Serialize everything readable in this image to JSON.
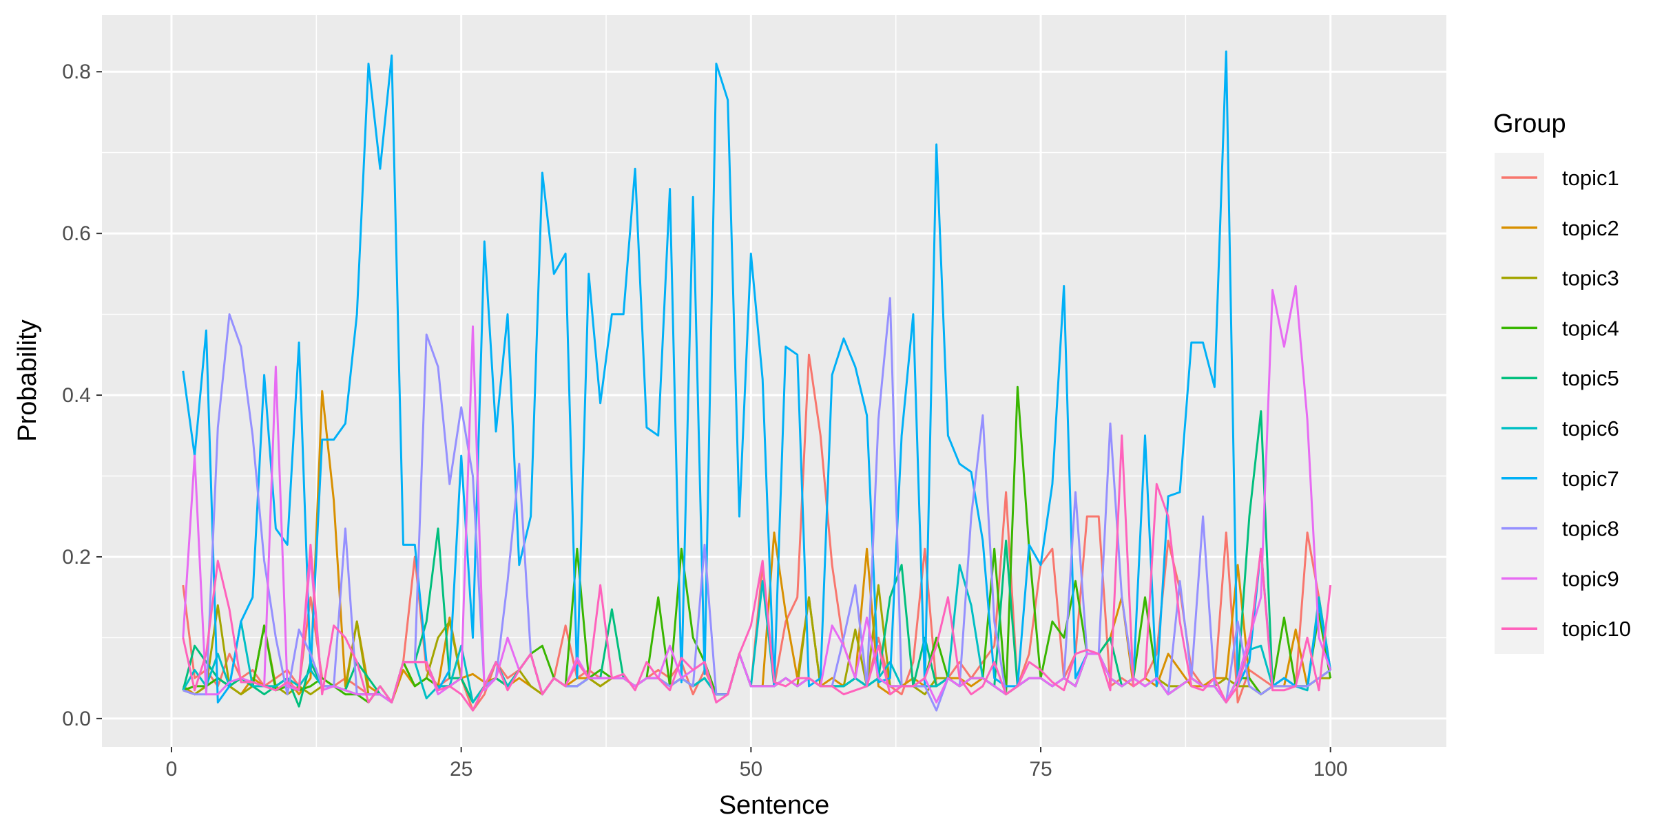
{
  "chart_data": {
    "type": "line",
    "title": "",
    "xlabel": "Sentence",
    "ylabel": "Probability",
    "xlim": [
      -6,
      110
    ],
    "ylim": [
      -0.035,
      0.87
    ],
    "x_ticks": [
      0,
      25,
      50,
      75,
      100
    ],
    "y_ticks": [
      0.0,
      0.2,
      0.4,
      0.6,
      0.8
    ],
    "y_tick_labels": [
      "0.0",
      "0.2",
      "0.4",
      "0.6",
      "0.8"
    ],
    "grid": true,
    "legend": {
      "title": "Group",
      "placement": "right"
    },
    "x": [
      1,
      2,
      3,
      4,
      5,
      6,
      7,
      8,
      9,
      10,
      11,
      12,
      13,
      14,
      15,
      16,
      17,
      18,
      19,
      20,
      21,
      22,
      23,
      24,
      25,
      26,
      27,
      28,
      29,
      30,
      31,
      32,
      33,
      34,
      35,
      36,
      37,
      38,
      39,
      40,
      41,
      42,
      43,
      44,
      45,
      46,
      47,
      48,
      49,
      50,
      51,
      52,
      53,
      54,
      55,
      56,
      57,
      58,
      59,
      60,
      61,
      62,
      63,
      64,
      65,
      66,
      67,
      68,
      69,
      70,
      71,
      72,
      73,
      74,
      75,
      76,
      77,
      78,
      79,
      80,
      81,
      82,
      83,
      84,
      85,
      86,
      87,
      88,
      89,
      90,
      91,
      92,
      93,
      94,
      95,
      96,
      97,
      98,
      99,
      100
    ],
    "series": [
      {
        "name": "topic1",
        "color": "#F8766D",
        "values": [
          0.165,
          0.05,
          0.06,
          0.04,
          0.08,
          0.05,
          0.06,
          0.04,
          0.05,
          0.06,
          0.04,
          0.15,
          0.05,
          0.04,
          0.05,
          0.04,
          0.03,
          0.03,
          0.02,
          0.07,
          0.2,
          0.06,
          0.04,
          0.05,
          0.05,
          0.01,
          0.03,
          0.07,
          0.05,
          0.06,
          0.08,
          0.03,
          0.05,
          0.115,
          0.05,
          0.06,
          0.05,
          0.05,
          0.05,
          0.04,
          0.05,
          0.06,
          0.05,
          0.07,
          0.03,
          0.06,
          0.03,
          0.03,
          0.08,
          0.04,
          0.19,
          0.04,
          0.12,
          0.15,
          0.45,
          0.35,
          0.19,
          0.09,
          0.05,
          0.04,
          0.1,
          0.04,
          0.03,
          0.07,
          0.21,
          0.04,
          0.05,
          0.07,
          0.05,
          0.07,
          0.09,
          0.28,
          0.04,
          0.08,
          0.19,
          0.21,
          0.05,
          0.08,
          0.25,
          0.25,
          0.04,
          0.05,
          0.04,
          0.05,
          0.08,
          0.22,
          0.16,
          0.06,
          0.04,
          0.04,
          0.23,
          0.02,
          0.06,
          0.05,
          0.04,
          0.05,
          0.04,
          0.23,
          0.15,
          0.06
        ]
      },
      {
        "name": "topic2",
        "color": "#D89000",
        "values": [
          0.04,
          0.03,
          0.04,
          0.05,
          0.04,
          0.03,
          0.05,
          0.04,
          0.04,
          0.05,
          0.03,
          0.05,
          0.405,
          0.27,
          0.04,
          0.12,
          0.04,
          0.03,
          0.02,
          0.06,
          0.04,
          0.05,
          0.04,
          0.125,
          0.05,
          0.055,
          0.045,
          0.05,
          0.04,
          0.05,
          0.04,
          0.03,
          0.05,
          0.04,
          0.05,
          0.05,
          0.04,
          0.05,
          0.05,
          0.04,
          0.05,
          0.05,
          0.04,
          0.05,
          0.04,
          0.05,
          0.03,
          0.03,
          0.08,
          0.04,
          0.04,
          0.23,
          0.13,
          0.05,
          0.15,
          0.04,
          0.05,
          0.04,
          0.05,
          0.21,
          0.04,
          0.03,
          0.04,
          0.05,
          0.04,
          0.04,
          0.05,
          0.05,
          0.04,
          0.05,
          0.04,
          0.03,
          0.04,
          0.05,
          0.05,
          0.04,
          0.05,
          0.04,
          0.08,
          0.08,
          0.1,
          0.15,
          0.04,
          0.05,
          0.04,
          0.08,
          0.06,
          0.04,
          0.04,
          0.05,
          0.05,
          0.19,
          0.05,
          0.03,
          0.04,
          0.04,
          0.11,
          0.04,
          0.05,
          0.06
        ]
      },
      {
        "name": "topic3",
        "color": "#A3A500",
        "values": [
          0.035,
          0.03,
          0.04,
          0.14,
          0.04,
          0.03,
          0.04,
          0.115,
          0.04,
          0.03,
          0.04,
          0.03,
          0.04,
          0.04,
          0.035,
          0.12,
          0.03,
          0.03,
          0.02,
          0.07,
          0.04,
          0.05,
          0.1,
          0.12,
          0.05,
          0.02,
          0.04,
          0.05,
          0.04,
          0.06,
          0.04,
          0.03,
          0.05,
          0.04,
          0.04,
          0.05,
          0.04,
          0.05,
          0.05,
          0.04,
          0.05,
          0.05,
          0.04,
          0.05,
          0.04,
          0.05,
          0.03,
          0.03,
          0.08,
          0.04,
          0.04,
          0.04,
          0.05,
          0.04,
          0.15,
          0.04,
          0.04,
          0.04,
          0.11,
          0.04,
          0.165,
          0.04,
          0.04,
          0.04,
          0.03,
          0.05,
          0.05,
          0.04,
          0.05,
          0.05,
          0.04,
          0.03,
          0.04,
          0.05,
          0.05,
          0.04,
          0.05,
          0.04,
          0.08,
          0.08,
          0.05,
          0.04,
          0.05,
          0.04,
          0.05,
          0.04,
          0.04,
          0.05,
          0.04,
          0.04,
          0.05,
          0.04,
          0.04,
          0.03,
          0.04,
          0.04,
          0.04,
          0.04,
          0.05,
          0.05
        ]
      },
      {
        "name": "topic4",
        "color": "#39B600",
        "values": [
          0.035,
          0.04,
          0.04,
          0.05,
          0.04,
          0.05,
          0.04,
          0.115,
          0.035,
          0.04,
          0.035,
          0.04,
          0.05,
          0.04,
          0.03,
          0.03,
          0.02,
          0.04,
          0.02,
          0.07,
          0.04,
          0.05,
          0.04,
          0.04,
          0.05,
          0.02,
          0.04,
          0.05,
          0.04,
          0.06,
          0.08,
          0.09,
          0.05,
          0.04,
          0.21,
          0.05,
          0.06,
          0.05,
          0.05,
          0.04,
          0.05,
          0.15,
          0.04,
          0.21,
          0.1,
          0.07,
          0.03,
          0.03,
          0.08,
          0.04,
          0.04,
          0.04,
          0.05,
          0.04,
          0.05,
          0.04,
          0.04,
          0.04,
          0.05,
          0.04,
          0.05,
          0.04,
          0.04,
          0.04,
          0.05,
          0.1,
          0.05,
          0.04,
          0.05,
          0.05,
          0.21,
          0.03,
          0.41,
          0.21,
          0.05,
          0.12,
          0.1,
          0.17,
          0.08,
          0.08,
          0.05,
          0.04,
          0.05,
          0.15,
          0.05,
          0.03,
          0.04,
          0.05,
          0.04,
          0.04,
          0.02,
          0.05,
          0.05,
          0.03,
          0.04,
          0.125,
          0.04,
          0.04,
          0.13,
          0.05
        ]
      },
      {
        "name": "topic5",
        "color": "#00BF7D",
        "values": [
          0.035,
          0.09,
          0.07,
          0.05,
          0.04,
          0.05,
          0.04,
          0.03,
          0.04,
          0.05,
          0.015,
          0.07,
          0.04,
          0.04,
          0.035,
          0.07,
          0.05,
          0.03,
          0.02,
          0.07,
          0.07,
          0.12,
          0.235,
          0.05,
          0.05,
          0.02,
          0.04,
          0.05,
          0.04,
          0.06,
          0.08,
          0.03,
          0.05,
          0.04,
          0.04,
          0.05,
          0.05,
          0.135,
          0.05,
          0.04,
          0.05,
          0.05,
          0.04,
          0.05,
          0.04,
          0.05,
          0.03,
          0.03,
          0.08,
          0.04,
          0.04,
          0.04,
          0.05,
          0.04,
          0.05,
          0.04,
          0.04,
          0.04,
          0.05,
          0.04,
          0.05,
          0.15,
          0.19,
          0.04,
          0.1,
          0.04,
          0.05,
          0.04,
          0.05,
          0.05,
          0.04,
          0.22,
          0.04,
          0.05,
          0.05,
          0.04,
          0.05,
          0.04,
          0.08,
          0.08,
          0.1,
          0.04,
          0.05,
          0.04,
          0.05,
          0.03,
          0.04,
          0.05,
          0.04,
          0.04,
          0.02,
          0.05,
          0.25,
          0.38,
          0.04,
          0.05,
          0.04,
          0.04,
          0.05,
          0.06
        ]
      },
      {
        "name": "topic6",
        "color": "#00BFC4",
        "values": [
          0.035,
          0.06,
          0.04,
          0.08,
          0.04,
          0.12,
          0.04,
          0.04,
          0.04,
          0.05,
          0.04,
          0.06,
          0.04,
          0.04,
          0.035,
          0.03,
          0.03,
          0.03,
          0.02,
          0.07,
          0.07,
          0.025,
          0.04,
          0.04,
          0.09,
          0.02,
          0.04,
          0.07,
          0.04,
          0.06,
          0.08,
          0.03,
          0.05,
          0.04,
          0.04,
          0.05,
          0.05,
          0.05,
          0.05,
          0.04,
          0.05,
          0.05,
          0.04,
          0.05,
          0.04,
          0.05,
          0.03,
          0.03,
          0.08,
          0.04,
          0.17,
          0.04,
          0.05,
          0.04,
          0.05,
          0.04,
          0.04,
          0.04,
          0.05,
          0.04,
          0.05,
          0.07,
          0.04,
          0.04,
          0.04,
          0.04,
          0.05,
          0.19,
          0.14,
          0.05,
          0.04,
          0.03,
          0.04,
          0.05,
          0.05,
          0.04,
          0.05,
          0.04,
          0.08,
          0.08,
          0.05,
          0.04,
          0.05,
          0.04,
          0.05,
          0.03,
          0.04,
          0.05,
          0.04,
          0.04,
          0.02,
          0.05,
          0.085,
          0.09,
          0.04,
          0.05,
          0.04,
          0.035,
          0.15,
          0.06
        ]
      },
      {
        "name": "topic7",
        "color": "#00B0F6",
        "values": [
          0.43,
          0.325,
          0.48,
          0.02,
          0.04,
          0.12,
          0.15,
          0.425,
          0.235,
          0.215,
          0.465,
          0.06,
          0.345,
          0.345,
          0.365,
          0.5,
          0.81,
          0.68,
          0.82,
          0.215,
          0.215,
          0.07,
          0.035,
          0.06,
          0.325,
          0.1,
          0.59,
          0.355,
          0.5,
          0.19,
          0.25,
          0.675,
          0.55,
          0.575,
          0.05,
          0.55,
          0.39,
          0.5,
          0.5,
          0.68,
          0.36,
          0.35,
          0.655,
          0.045,
          0.645,
          0.055,
          0.81,
          0.765,
          0.25,
          0.575,
          0.42,
          0.04,
          0.46,
          0.45,
          0.04,
          0.05,
          0.425,
          0.47,
          0.435,
          0.375,
          0.045,
          0.05,
          0.35,
          0.5,
          0.04,
          0.71,
          0.35,
          0.315,
          0.305,
          0.22,
          0.05,
          0.04,
          0.04,
          0.215,
          0.19,
          0.29,
          0.535,
          0.05,
          0.08,
          0.08,
          0.05,
          0.04,
          0.05,
          0.35,
          0.04,
          0.275,
          0.28,
          0.465,
          0.465,
          0.41,
          0.825,
          0.04,
          0.07,
          0.21,
          0.04,
          0.05,
          0.04,
          0.04,
          0.14,
          0.06
        ]
      },
      {
        "name": "topic8",
        "color": "#9590FF",
        "values": [
          0.035,
          0.03,
          0.03,
          0.36,
          0.5,
          0.46,
          0.35,
          0.195,
          0.1,
          0.03,
          0.11,
          0.08,
          0.04,
          0.04,
          0.235,
          0.03,
          0.03,
          0.03,
          0.02,
          0.07,
          0.07,
          0.475,
          0.435,
          0.29,
          0.385,
          0.3,
          0.04,
          0.05,
          0.17,
          0.315,
          0.08,
          0.03,
          0.05,
          0.04,
          0.04,
          0.05,
          0.05,
          0.05,
          0.05,
          0.04,
          0.05,
          0.05,
          0.04,
          0.05,
          0.04,
          0.215,
          0.03,
          0.03,
          0.08,
          0.04,
          0.04,
          0.04,
          0.05,
          0.04,
          0.05,
          0.04,
          0.04,
          0.1,
          0.165,
          0.04,
          0.37,
          0.52,
          0.04,
          0.04,
          0.04,
          0.01,
          0.05,
          0.04,
          0.25,
          0.375,
          0.12,
          0.03,
          0.04,
          0.05,
          0.05,
          0.04,
          0.05,
          0.28,
          0.08,
          0.08,
          0.365,
          0.15,
          0.05,
          0.04,
          0.05,
          0.03,
          0.17,
          0.05,
          0.25,
          0.04,
          0.02,
          0.12,
          0.04,
          0.03,
          0.04,
          0.04,
          0.04,
          0.04,
          0.05,
          0.06
        ]
      },
      {
        "name": "topic9",
        "color": "#E76BF3",
        "values": [
          0.1,
          0.325,
          0.03,
          0.03,
          0.045,
          0.05,
          0.045,
          0.04,
          0.435,
          0.04,
          0.035,
          0.2,
          0.035,
          0.04,
          0.035,
          0.03,
          0.03,
          0.03,
          0.02,
          0.07,
          0.07,
          0.07,
          0.03,
          0.04,
          0.05,
          0.485,
          0.035,
          0.05,
          0.1,
          0.06,
          0.08,
          0.03,
          0.05,
          0.04,
          0.075,
          0.05,
          0.05,
          0.05,
          0.05,
          0.04,
          0.05,
          0.05,
          0.09,
          0.05,
          0.06,
          0.07,
          0.02,
          0.03,
          0.08,
          0.04,
          0.04,
          0.04,
          0.05,
          0.04,
          0.05,
          0.04,
          0.115,
          0.09,
          0.05,
          0.125,
          0.05,
          0.04,
          0.04,
          0.04,
          0.05,
          0.02,
          0.05,
          0.04,
          0.05,
          0.05,
          0.04,
          0.03,
          0.04,
          0.05,
          0.05,
          0.04,
          0.05,
          0.04,
          0.08,
          0.08,
          0.05,
          0.04,
          0.05,
          0.04,
          0.05,
          0.03,
          0.04,
          0.05,
          0.04,
          0.04,
          0.02,
          0.05,
          0.1,
          0.15,
          0.53,
          0.46,
          0.535,
          0.37,
          0.1,
          0.06
        ]
      },
      {
        "name": "topic10",
        "color": "#FF62BC",
        "values": [
          0.1,
          0.035,
          0.08,
          0.195,
          0.135,
          0.045,
          0.045,
          0.04,
          0.035,
          0.045,
          0.035,
          0.215,
          0.03,
          0.115,
          0.1,
          0.07,
          0.02,
          0.04,
          0.02,
          0.07,
          0.07,
          0.07,
          0.035,
          0.04,
          0.03,
          0.01,
          0.04,
          0.07,
          0.035,
          0.06,
          0.08,
          0.03,
          0.05,
          0.04,
          0.07,
          0.05,
          0.165,
          0.05,
          0.055,
          0.035,
          0.07,
          0.05,
          0.035,
          0.075,
          0.06,
          0.07,
          0.02,
          0.03,
          0.08,
          0.115,
          0.195,
          0.045,
          0.04,
          0.05,
          0.05,
          0.04,
          0.04,
          0.03,
          0.035,
          0.04,
          0.09,
          0.03,
          0.04,
          0.04,
          0.05,
          0.09,
          0.15,
          0.05,
          0.03,
          0.04,
          0.07,
          0.03,
          0.04,
          0.07,
          0.06,
          0.045,
          0.035,
          0.08,
          0.085,
          0.08,
          0.035,
          0.35,
          0.04,
          0.05,
          0.29,
          0.25,
          0.12,
          0.04,
          0.035,
          0.05,
          0.02,
          0.04,
          0.09,
          0.21,
          0.035,
          0.035,
          0.04,
          0.1,
          0.035,
          0.165
        ]
      }
    ]
  }
}
